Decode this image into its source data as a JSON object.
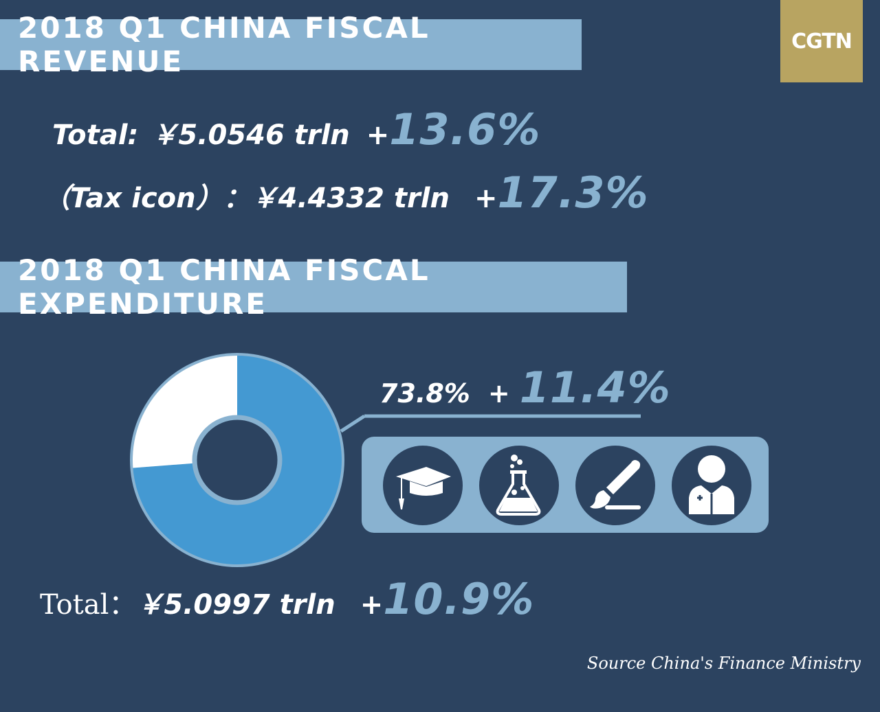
{
  "brand": {
    "logo_text": "CGTN",
    "logo_color": "#b8a461"
  },
  "revenue": {
    "banner": "2018 Q1 CHINA FISCAL REVENUE",
    "total_label": "Total:",
    "total_value": "￥5.0546 trln",
    "total_plus": "+",
    "total_growth": "13.6%",
    "tax_label": "（Tax icon）：",
    "tax_value": "￥4.4332 trln",
    "tax_plus": "+",
    "tax_growth": "17.3%"
  },
  "expenditure": {
    "banner": "2018 Q1 CHINA FISCAL EXPENDITURE",
    "share_label": "73.8%",
    "share_plus": "+",
    "share_growth": "11.4%",
    "total_label": "Total：",
    "total_value": "￥5.0997 trln",
    "total_plus": "+",
    "total_growth": "10.9%",
    "icons": [
      "graduation-cap-icon",
      "lab-flask-icon",
      "paintbrush-icon",
      "doctor-icon"
    ]
  },
  "chart_data": {
    "type": "pie",
    "title": "",
    "categories": [
      "",
      ""
    ],
    "values": [
      73.8,
      26.2
    ],
    "colors": [
      "#4499d2",
      "#ffffff"
    ],
    "donut": true
  },
  "source": "Source China's Finance Ministry",
  "colors": {
    "background": "#2c4360",
    "accent": "#89b2d0",
    "slice": "#4499d2"
  }
}
